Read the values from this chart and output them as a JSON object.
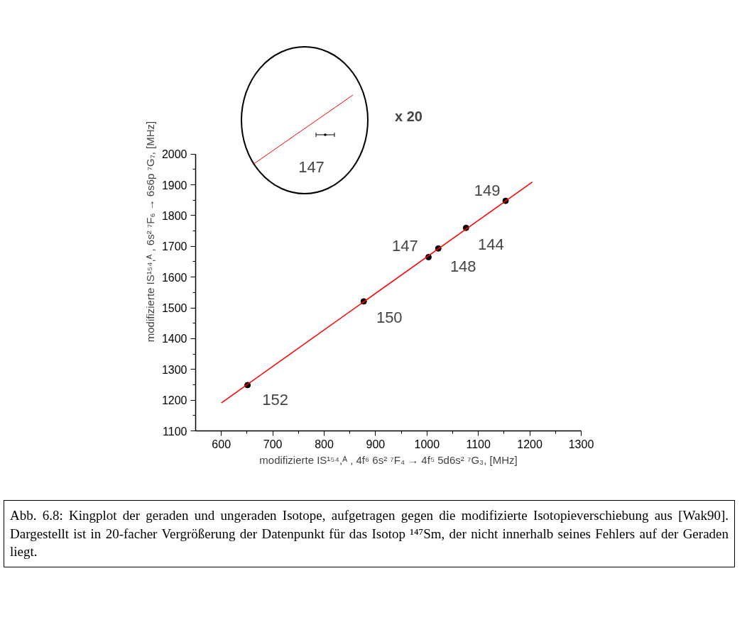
{
  "chart_data": {
    "type": "scatter",
    "xlabel": "modifizierte IS¹⁵⁴,ᴬ , 4f⁶ 6s² ⁷F₄ → 4f⁵ 5d6s² ⁷G₃, [MHz]",
    "ylabel": "modifizierte IS¹⁵⁴,ᴬ , 6s² ⁷F₆ → 6s6p ⁷G₇, [MHz]",
    "xlim": [
      550,
      1300
    ],
    "ylim": [
      1100,
      2000
    ],
    "xticks": [
      600,
      700,
      800,
      900,
      1000,
      1100,
      1200,
      1300
    ],
    "yticks": [
      1100,
      1200,
      1300,
      1400,
      1500,
      1600,
      1700,
      1800,
      1900,
      2000
    ],
    "grid": false,
    "series": [
      {
        "marker": "circle",
        "color": "#000000",
        "x": [
          651,
          877,
          1003,
          1022,
          1076,
          1153
        ],
        "values": [
          1249,
          1521,
          1665,
          1693,
          1760,
          1848
        ]
      },
      {
        "type": "line",
        "color": "#ff0000",
        "x": [
          600,
          1205
        ],
        "values": [
          1191,
          1909
        ]
      }
    ],
    "annotations": [
      {
        "text": "152",
        "x": 651,
        "y": 1249
      },
      {
        "text": "150",
        "x": 877,
        "y": 1521
      },
      {
        "text": "147",
        "x": 1003,
        "y": 1665
      },
      {
        "text": "148",
        "x": 1022,
        "y": 1693
      },
      {
        "text": "144",
        "x": 1076,
        "y": 1760
      },
      {
        "text": "149",
        "x": 1153,
        "y": 1848
      },
      "147",
      "x 20",
      "Abb. 6.8: Kingplot der geraden und ungeraden Isotope, aufgetragen gegen die modifizierte Isotopieverschiebung aus [Wak90]. Dargestellt ist in 20-facher Vergrößerung der Datenpunkt für das Isotop ¹⁴⁷Sm, der nicht innerhalb seines Fehlers auf der Geraden liegt."
    ]
  }
}
